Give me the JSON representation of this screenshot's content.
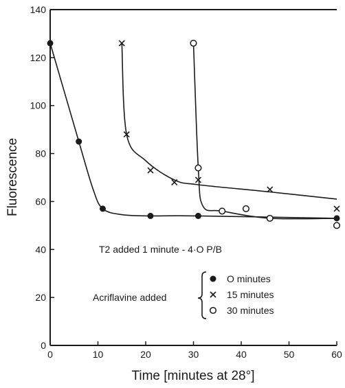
{
  "chart_data": {
    "type": "scatter",
    "title": "",
    "xlabel": "Time [minutes at 28°]",
    "ylabel": "Fluorescence",
    "xlim": [
      0,
      60
    ],
    "ylim": [
      0,
      140
    ],
    "xticks": [
      0,
      10,
      20,
      30,
      40,
      50,
      60
    ],
    "yticks": [
      0,
      20,
      40,
      60,
      80,
      100,
      120,
      140
    ],
    "grid": false,
    "series": [
      {
        "marker": "filled-circle",
        "points": [
          [
            0,
            126
          ],
          [
            6,
            85
          ],
          [
            11,
            57
          ],
          [
            21,
            54
          ],
          [
            31,
            54
          ],
          [
            60,
            53
          ]
        ],
        "curve": [
          [
            0,
            126
          ],
          [
            6,
            85
          ],
          [
            9,
            65
          ],
          [
            11,
            57
          ],
          [
            15,
            54.5
          ],
          [
            21,
            54
          ],
          [
            31,
            54
          ],
          [
            60,
            53
          ]
        ]
      },
      {
        "marker": "x",
        "points": [
          [
            15,
            126
          ],
          [
            16,
            88
          ],
          [
            21,
            73
          ],
          [
            26,
            68
          ],
          [
            31,
            69
          ],
          [
            46,
            65
          ],
          [
            60,
            57
          ]
        ],
        "curve": [
          [
            15,
            126
          ],
          [
            16,
            88
          ],
          [
            20,
            77
          ],
          [
            26,
            69
          ],
          [
            31,
            67
          ],
          [
            46,
            64
          ],
          [
            60,
            61
          ]
        ]
      },
      {
        "marker": "open-circle",
        "points": [
          [
            30,
            126
          ],
          [
            31,
            74
          ],
          [
            36,
            56
          ],
          [
            41,
            57
          ],
          [
            46,
            53
          ],
          [
            60,
            50
          ]
        ],
        "curve": [
          [
            30,
            126
          ],
          [
            31,
            74
          ],
          [
            32,
            58
          ],
          [
            36,
            56
          ],
          [
            46,
            53
          ],
          [
            60,
            53
          ]
        ]
      }
    ]
  },
  "legend": {
    "header": "T2 added 1 minute - 4·O P/B",
    "group_label": "Acriflavine added",
    "items": [
      {
        "marker": "filled-circle",
        "label": "O minutes"
      },
      {
        "marker": "x",
        "label": "15 minutes"
      },
      {
        "marker": "open-circle",
        "label": "30 minutes"
      }
    ]
  }
}
